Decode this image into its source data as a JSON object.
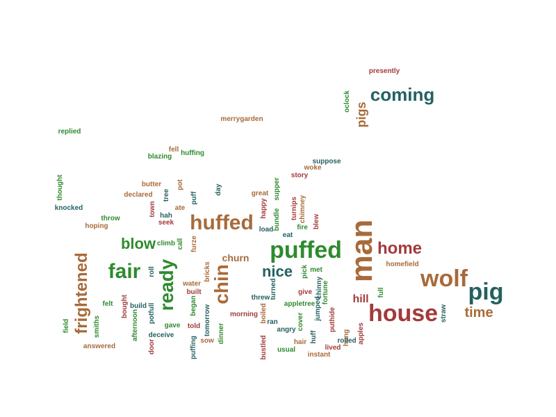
{
  "colors": {
    "brown": "#a86a3a",
    "red": "#a33a3a",
    "green": "#2e8b2e",
    "teal": "#246060"
  },
  "words": [
    {
      "text": "presently",
      "color": "red"
    },
    {
      "text": "coming",
      "color": "teal"
    },
    {
      "text": "oclock",
      "color": "green"
    },
    {
      "text": "pigs",
      "color": "brown"
    },
    {
      "text": "merrygarden",
      "color": "brown"
    },
    {
      "text": "replied",
      "color": "green"
    },
    {
      "text": "fell",
      "color": "brown"
    },
    {
      "text": "huffing",
      "color": "green"
    },
    {
      "text": "blazing",
      "color": "green"
    },
    {
      "text": "suppose",
      "color": "teal"
    },
    {
      "text": "woke",
      "color": "brown"
    },
    {
      "text": "story",
      "color": "red"
    },
    {
      "text": "thought",
      "color": "green"
    },
    {
      "text": "butter",
      "color": "brown"
    },
    {
      "text": "pot",
      "color": "brown"
    },
    {
      "text": "day",
      "color": "teal"
    },
    {
      "text": "supper",
      "color": "green"
    },
    {
      "text": "declared",
      "color": "brown"
    },
    {
      "text": "tree",
      "color": "teal"
    },
    {
      "text": "puff",
      "color": "teal"
    },
    {
      "text": "great",
      "color": "brown"
    },
    {
      "text": "knocked",
      "color": "teal"
    },
    {
      "text": "town",
      "color": "red"
    },
    {
      "text": "ate",
      "color": "brown"
    },
    {
      "text": "happy",
      "color": "red"
    },
    {
      "text": "turnips",
      "color": "red"
    },
    {
      "text": "chimney",
      "color": "brown"
    },
    {
      "text": "throw",
      "color": "green"
    },
    {
      "text": "hah",
      "color": "teal"
    },
    {
      "text": "bundle",
      "color": "green"
    },
    {
      "text": "blew",
      "color": "red"
    },
    {
      "text": "hoping",
      "color": "brown"
    },
    {
      "text": "seek",
      "color": "red"
    },
    {
      "text": "huffed",
      "color": "brown"
    },
    {
      "text": "load",
      "color": "teal"
    },
    {
      "text": "fire",
      "color": "green"
    },
    {
      "text": "eat",
      "color": "teal"
    },
    {
      "text": "man",
      "color": "brown"
    },
    {
      "text": "blow",
      "color": "green"
    },
    {
      "text": "climb",
      "color": "green"
    },
    {
      "text": "call",
      "color": "green"
    },
    {
      "text": "furze",
      "color": "brown"
    },
    {
      "text": "puffed",
      "color": "green"
    },
    {
      "text": "home",
      "color": "red"
    },
    {
      "text": "frightened",
      "color": "brown"
    },
    {
      "text": "churn",
      "color": "brown"
    },
    {
      "text": "homefield",
      "color": "brown"
    },
    {
      "text": "fair",
      "color": "green"
    },
    {
      "text": "ready",
      "color": "green"
    },
    {
      "text": "roll",
      "color": "teal"
    },
    {
      "text": "bricks",
      "color": "brown"
    },
    {
      "text": "chin",
      "color": "brown"
    },
    {
      "text": "nice",
      "color": "teal"
    },
    {
      "text": "pick",
      "color": "green"
    },
    {
      "text": "met",
      "color": "green"
    },
    {
      "text": "wolf",
      "color": "brown"
    },
    {
      "text": "water",
      "color": "brown"
    },
    {
      "text": "built",
      "color": "red"
    },
    {
      "text": "turned",
      "color": "teal"
    },
    {
      "text": "give",
      "color": "red"
    },
    {
      "text": "chinny",
      "color": "teal"
    },
    {
      "text": "fortune",
      "color": "green"
    },
    {
      "text": "full",
      "color": "green"
    },
    {
      "text": "pig",
      "color": "teal"
    },
    {
      "text": "felt",
      "color": "green"
    },
    {
      "text": "bought",
      "color": "red"
    },
    {
      "text": "build",
      "color": "teal"
    },
    {
      "text": "potfull",
      "color": "teal"
    },
    {
      "text": "began",
      "color": "green"
    },
    {
      "text": "threw",
      "color": "teal"
    },
    {
      "text": "appletree",
      "color": "green"
    },
    {
      "text": "hill",
      "color": "red"
    },
    {
      "text": "house",
      "color": "red"
    },
    {
      "text": "time",
      "color": "brown"
    },
    {
      "text": "field",
      "color": "green"
    },
    {
      "text": "smiths",
      "color": "green"
    },
    {
      "text": "afternoon",
      "color": "green"
    },
    {
      "text": "tomorrow",
      "color": "teal"
    },
    {
      "text": "morning",
      "color": "red"
    },
    {
      "text": "boiled",
      "color": "brown"
    },
    {
      "text": "jumped",
      "color": "teal"
    },
    {
      "text": "puthide",
      "color": "red"
    },
    {
      "text": "straw",
      "color": "teal"
    },
    {
      "text": "gave",
      "color": "green"
    },
    {
      "text": "told",
      "color": "red"
    },
    {
      "text": "ran",
      "color": "teal"
    },
    {
      "text": "cover",
      "color": "green"
    },
    {
      "text": "hung",
      "color": "brown"
    },
    {
      "text": "apples",
      "color": "red"
    },
    {
      "text": "angry",
      "color": "teal"
    },
    {
      "text": "deceive",
      "color": "teal"
    },
    {
      "text": "dinner",
      "color": "green"
    },
    {
      "text": "huff",
      "color": "teal"
    },
    {
      "text": "rolled",
      "color": "teal"
    },
    {
      "text": "answered",
      "color": "brown"
    },
    {
      "text": "door",
      "color": "red"
    },
    {
      "text": "puffing",
      "color": "teal"
    },
    {
      "text": "sow",
      "color": "brown"
    },
    {
      "text": "bustled",
      "color": "red"
    },
    {
      "text": "hair",
      "color": "brown"
    },
    {
      "text": "lived",
      "color": "red"
    },
    {
      "text": "usual",
      "color": "green"
    },
    {
      "text": "instant",
      "color": "brown"
    }
  ]
}
